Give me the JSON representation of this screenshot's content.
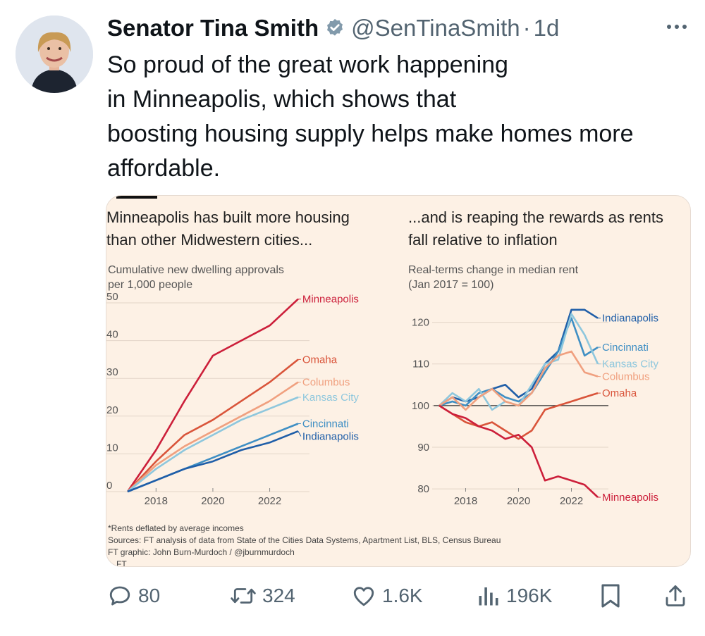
{
  "tweet": {
    "display_name": "Senator Tina Smith",
    "handle": "@SenTinaSmith",
    "separator": "·",
    "time": "1d",
    "verified_icon": "verified-badge-icon",
    "more_icon": "more-icon",
    "text": "So proud of the great work happening\nin Minneapolis, which shows that\nboosting housing supply helps make homes more\naffordable."
  },
  "actions": {
    "reply_count": "80",
    "retweet_count": "324",
    "like_count": "1.6K",
    "views_count": "196K"
  },
  "colors": {
    "card_bg": "#fdf1e5",
    "minneapolis": "#cc1f3a",
    "omaha": "#d9543a",
    "columbus": "#f0a07f",
    "kansas_city": "#8ec7dd",
    "cincinnati": "#3f8fc4",
    "indianapolis": "#1f5ea8"
  },
  "chart_data": [
    {
      "type": "line",
      "title": "Minneapolis has built more housing than other Midwestern cities...",
      "title_lines": [
        "Minneapolis has built more housing",
        "than other Midwestern cities..."
      ],
      "ylabel_lines": [
        "Cumulative new dwelling approvals",
        "per 1,000 people"
      ],
      "ylabel": "Cumulative new dwelling approvals per 1,000 people",
      "xlabel": "",
      "x_ticks": [
        "2018",
        "2020",
        "2022"
      ],
      "y_ticks": [
        "0",
        "10",
        "20",
        "30",
        "40",
        "50"
      ],
      "xlim": [
        2017,
        2023.4
      ],
      "ylim": [
        0,
        50
      ],
      "x": [
        2017,
        2018,
        2019,
        2020,
        2021,
        2022,
        2023
      ],
      "series": [
        {
          "name": "Minneapolis",
          "color": "#cc1f3a",
          "values": [
            0,
            11,
            24,
            36,
            40,
            44,
            51
          ]
        },
        {
          "name": "Omaha",
          "color": "#d9543a",
          "values": [
            0,
            8,
            15,
            19,
            24,
            29,
            35
          ]
        },
        {
          "name": "Columbus",
          "color": "#f0a07f",
          "values": [
            0,
            7,
            12,
            16,
            20,
            24,
            29
          ]
        },
        {
          "name": "Kansas City",
          "color": "#8ec7dd",
          "values": [
            0,
            6,
            11,
            15,
            19,
            22,
            25
          ]
        },
        {
          "name": "Cincinnati",
          "color": "#3f8fc4",
          "values": [
            0,
            3,
            6,
            9,
            12,
            15,
            18
          ]
        },
        {
          "name": "Indianapolis",
          "color": "#1f5ea8",
          "values": [
            0,
            3,
            6,
            8,
            11,
            13,
            16
          ]
        }
      ]
    },
    {
      "type": "line",
      "title": "...and is reaping the rewards as rents fall relative to inflation",
      "title_lines": [
        "...and is reaping the rewards as rents",
        "fall relative to inflation"
      ],
      "ylabel_lines": [
        "Real-terms change in median rent",
        "(Jan 2017 = 100)"
      ],
      "ylabel": "Real-terms change in median rent (Jan 2017 = 100)",
      "xlabel": "",
      "x_ticks": [
        "2018",
        "2020",
        "2022"
      ],
      "y_ticks": [
        "80",
        "90",
        "100",
        "110",
        "120"
      ],
      "baseline": 100,
      "xlim": [
        2017,
        2023.4
      ],
      "ylim": [
        78,
        125
      ],
      "x": [
        2017,
        2017.5,
        2018,
        2018.5,
        2019,
        2019.5,
        2020,
        2020.5,
        2021,
        2021.5,
        2022,
        2022.5,
        2023
      ],
      "series": [
        {
          "name": "Indianapolis",
          "color": "#1f5ea8",
          "values": [
            100,
            102,
            101,
            102,
            104,
            105,
            102,
            104,
            110,
            113,
            123,
            123,
            121
          ]
        },
        {
          "name": "Cincinnati",
          "color": "#3f8fc4",
          "values": [
            100,
            101,
            100,
            103,
            104,
            102,
            101,
            103,
            108,
            113,
            121,
            112,
            114
          ]
        },
        {
          "name": "Kansas City",
          "color": "#8ec7dd",
          "values": [
            100,
            103,
            101,
            104,
            99,
            101,
            100,
            105,
            110,
            111,
            122,
            117,
            110
          ]
        },
        {
          "name": "Columbus",
          "color": "#f0a07f",
          "values": [
            100,
            102,
            99,
            102,
            104,
            101,
            100,
            103,
            109,
            112,
            113,
            108,
            107
          ]
        },
        {
          "name": "Omaha",
          "color": "#d9543a",
          "values": [
            100,
            98,
            96,
            95,
            96,
            94,
            92,
            94,
            99,
            100,
            101,
            102,
            103
          ]
        },
        {
          "name": "Minneapolis",
          "color": "#cc1f3a",
          "values": [
            100,
            98,
            97,
            95,
            94,
            92,
            93,
            90,
            82,
            83,
            82,
            81,
            78
          ]
        }
      ]
    }
  ],
  "footnotes": {
    "note": "*Rents deflated by average incomes",
    "sources": "Sources: FT analysis of data from State of the Cities Data Systems, Apartment List, BLS, Census Bureau",
    "credit": "FT graphic: John Burn-Murdoch / @jburnmurdoch",
    "brand": "FT"
  }
}
